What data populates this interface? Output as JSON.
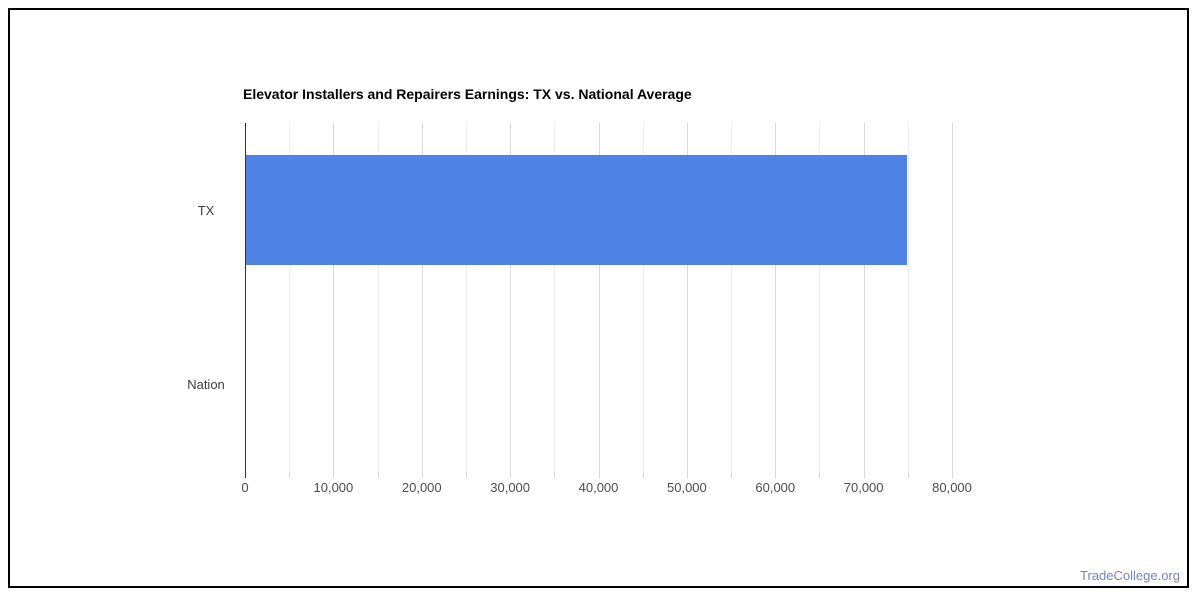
{
  "page": {
    "background": "#ffffff",
    "border_color": "#000000",
    "footer_link": "TradeCollege.org",
    "footer_link_color": "#7286d6"
  },
  "chart_data": {
    "type": "bar",
    "orientation": "horizontal",
    "title": "Elevator Installers and Repairers Earnings: TX vs. National Average",
    "categories": [
      "TX",
      "Nation"
    ],
    "values": [
      74800,
      0
    ],
    "xlabel": "",
    "ylabel": "",
    "xlim": [
      0,
      80000
    ],
    "x_ticks": [
      0,
      10000,
      20000,
      30000,
      40000,
      50000,
      60000,
      70000,
      80000
    ],
    "x_tick_labels": [
      "0",
      "10,000",
      "20,000",
      "30,000",
      "40,000",
      "50,000",
      "60,000",
      "70,000",
      "80,000"
    ],
    "minor_grid_step": 5000,
    "grid": true,
    "legend": "none",
    "bar_color": "#4e82e4",
    "axis_color": "#333333",
    "major_grid_color": "#d9d9d9",
    "minor_grid_color": "#eeeeee"
  }
}
